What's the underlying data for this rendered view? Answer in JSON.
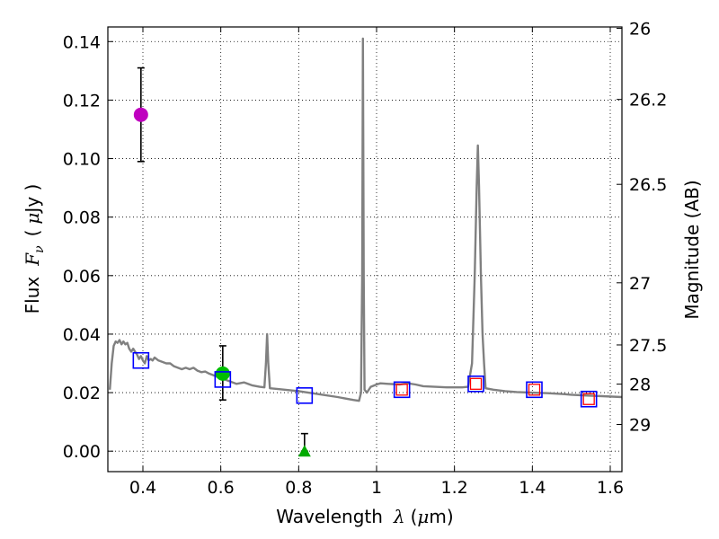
{
  "chart_data": {
    "type": "scatter",
    "xlabel": "Wavelength",
    "xlabel_symbol": "λ",
    "xlabel_unit_pre": "(",
    "xlabel_unit_mu": "μ",
    "xlabel_unit_post": "m)",
    "ylabel": "Flux",
    "ylabel_symbol_base": "F",
    "ylabel_symbol_sub": "ν",
    "ylabel_unit_pre": "(",
    "ylabel_unit_mu": "μ",
    "ylabel_unit_post": "Jy )",
    "y2label": "Magnitude (AB)",
    "xlim": [
      0.31,
      1.63
    ],
    "ylim": [
      -0.007,
      0.145
    ],
    "grid": true,
    "x_ticks": [
      0.4,
      0.6,
      0.8,
      1.0,
      1.2,
      1.4,
      1.6
    ],
    "x_tick_labels": [
      "0.4",
      "0.6",
      "0.8",
      "1",
      "1.2",
      "1.4",
      "1.6"
    ],
    "y_ticks": [
      0.0,
      0.02,
      0.04,
      0.06,
      0.08,
      0.1,
      0.12,
      0.14
    ],
    "y_tick_labels": [
      "0.00",
      "0.02",
      "0.04",
      "0.06",
      "0.08",
      "0.10",
      "0.12",
      "0.14"
    ],
    "mag_ticks": [
      {
        "mag": 26,
        "label": "26"
      },
      {
        "mag": 26.2,
        "label": "26.2"
      },
      {
        "mag": 26.5,
        "label": "26.5"
      },
      {
        "mag": 27,
        "label": "27"
      },
      {
        "mag": 27.5,
        "label": "27.5"
      },
      {
        "mag": 28,
        "label": "28"
      },
      {
        "mag": 29,
        "label": "29"
      }
    ],
    "spectrum": {
      "color": "#808080",
      "points": [
        [
          0.315,
          0.021
        ],
        [
          0.32,
          0.03
        ],
        [
          0.325,
          0.036
        ],
        [
          0.33,
          0.0375
        ],
        [
          0.335,
          0.037
        ],
        [
          0.34,
          0.038
        ],
        [
          0.345,
          0.0365
        ],
        [
          0.35,
          0.0375
        ],
        [
          0.355,
          0.0365
        ],
        [
          0.36,
          0.037
        ],
        [
          0.365,
          0.035
        ],
        [
          0.37,
          0.034
        ],
        [
          0.375,
          0.035
        ],
        [
          0.38,
          0.034
        ],
        [
          0.385,
          0.033
        ],
        [
          0.39,
          0.0315
        ],
        [
          0.395,
          0.0325
        ],
        [
          0.4,
          0.031
        ],
        [
          0.405,
          0.03
        ],
        [
          0.41,
          0.0325
        ],
        [
          0.415,
          0.031
        ],
        [
          0.42,
          0.0315
        ],
        [
          0.425,
          0.031
        ],
        [
          0.43,
          0.032
        ],
        [
          0.44,
          0.031
        ],
        [
          0.45,
          0.0305
        ],
        [
          0.46,
          0.03
        ],
        [
          0.47,
          0.03
        ],
        [
          0.48,
          0.029
        ],
        [
          0.49,
          0.0285
        ],
        [
          0.5,
          0.028
        ],
        [
          0.51,
          0.0285
        ],
        [
          0.52,
          0.028
        ],
        [
          0.53,
          0.0285
        ],
        [
          0.54,
          0.0275
        ],
        [
          0.55,
          0.027
        ],
        [
          0.56,
          0.0272
        ],
        [
          0.57,
          0.0265
        ],
        [
          0.58,
          0.026
        ],
        [
          0.59,
          0.0255
        ],
        [
          0.6,
          0.025
        ],
        [
          0.62,
          0.024
        ],
        [
          0.64,
          0.023
        ],
        [
          0.66,
          0.0235
        ],
        [
          0.68,
          0.0225
        ],
        [
          0.7,
          0.022
        ],
        [
          0.712,
          0.0218
        ],
        [
          0.716,
          0.03
        ],
        [
          0.719,
          0.04
        ],
        [
          0.722,
          0.03
        ],
        [
          0.726,
          0.0215
        ],
        [
          0.75,
          0.0212
        ],
        [
          0.8,
          0.0205
        ],
        [
          0.85,
          0.0195
        ],
        [
          0.9,
          0.0185
        ],
        [
          0.94,
          0.0175
        ],
        [
          0.955,
          0.0172
        ],
        [
          0.96,
          0.02
        ],
        [
          0.963,
          0.06
        ],
        [
          0.965,
          0.141
        ],
        [
          0.967,
          0.06
        ],
        [
          0.969,
          0.021
        ],
        [
          0.975,
          0.02
        ],
        [
          0.985,
          0.022
        ],
        [
          1.0,
          0.0228
        ],
        [
          1.01,
          0.0232
        ],
        [
          1.03,
          0.023
        ],
        [
          1.06,
          0.0228
        ],
        [
          1.08,
          0.0232
        ],
        [
          1.1,
          0.0228
        ],
        [
          1.12,
          0.0222
        ],
        [
          1.15,
          0.022
        ],
        [
          1.18,
          0.0218
        ],
        [
          1.2,
          0.0218
        ],
        [
          1.22,
          0.0218
        ],
        [
          1.235,
          0.022
        ],
        [
          1.245,
          0.03
        ],
        [
          1.252,
          0.06
        ],
        [
          1.257,
          0.0905
        ],
        [
          1.26,
          0.1045
        ],
        [
          1.263,
          0.0905
        ],
        [
          1.268,
          0.06
        ],
        [
          1.272,
          0.04
        ],
        [
          1.276,
          0.03
        ],
        [
          1.28,
          0.0215
        ],
        [
          1.3,
          0.021
        ],
        [
          1.33,
          0.0205
        ],
        [
          1.36,
          0.0202
        ],
        [
          1.4,
          0.02
        ],
        [
          1.44,
          0.0198
        ],
        [
          1.48,
          0.0195
        ],
        [
          1.5,
          0.0193
        ],
        [
          1.54,
          0.019
        ],
        [
          1.58,
          0.0188
        ],
        [
          1.63,
          0.0185
        ]
      ]
    },
    "model_points": [
      {
        "x": 0.395,
        "y": 0.031
      },
      {
        "x": 0.605,
        "y": 0.0245
      },
      {
        "x": 0.815,
        "y": 0.019
      },
      {
        "x": 1.065,
        "y": 0.021
      },
      {
        "x": 1.255,
        "y": 0.023
      },
      {
        "x": 1.405,
        "y": 0.021
      },
      {
        "x": 1.545,
        "y": 0.0178
      }
    ],
    "measured_squares": [
      {
        "x": 1.065,
        "y": 0.021
      },
      {
        "x": 1.255,
        "y": 0.023
      },
      {
        "x": 1.405,
        "y": 0.021
      },
      {
        "x": 1.545,
        "y": 0.0178
      }
    ],
    "detections": [
      {
        "x": 0.395,
        "y": 0.115,
        "yerr_low": 0.099,
        "yerr_high": 0.131,
        "color": "#bf00bf",
        "marker": "circle"
      },
      {
        "x": 0.605,
        "y": 0.0265,
        "yerr_low": 0.0175,
        "yerr_high": 0.036,
        "color": "#00bf00",
        "marker": "circle"
      }
    ],
    "upper_limit": {
      "x": 0.815,
      "y": 0.0,
      "yerr_low": 0.0,
      "yerr_high": 0.006,
      "color": "#00aa00",
      "marker": "triangle"
    },
    "colors": {
      "model": "#0000ff",
      "measured": "#ff0000",
      "errorbar": "#000000",
      "grid": "#000000"
    }
  }
}
